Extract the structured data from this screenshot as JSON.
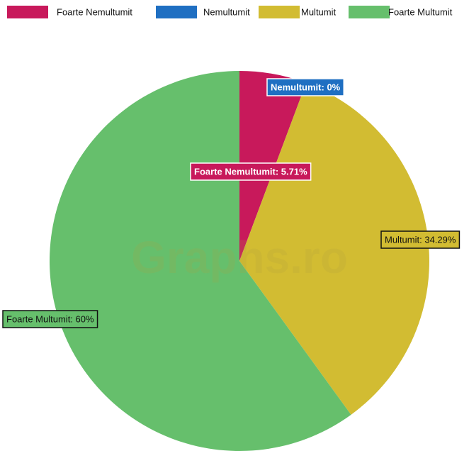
{
  "chart_data": {
    "type": "pie",
    "categories": [
      "Foarte Nemultumit",
      "Nemultumit",
      "Multumit",
      "Foarte Multumit"
    ],
    "values": [
      5.71,
      0,
      34.29,
      60
    ],
    "value_labels": [
      "Foarte Nemultumit: 5.71%",
      "Nemultumit: 0%",
      "Multumit: 34.29%",
      "Foarte Multumit: 60%"
    ],
    "colors": [
      "#c8195b",
      "#1f6fc2",
      "#d2bc32",
      "#66bf6c"
    ],
    "legend": "top",
    "watermark": "Graphs.ro"
  }
}
